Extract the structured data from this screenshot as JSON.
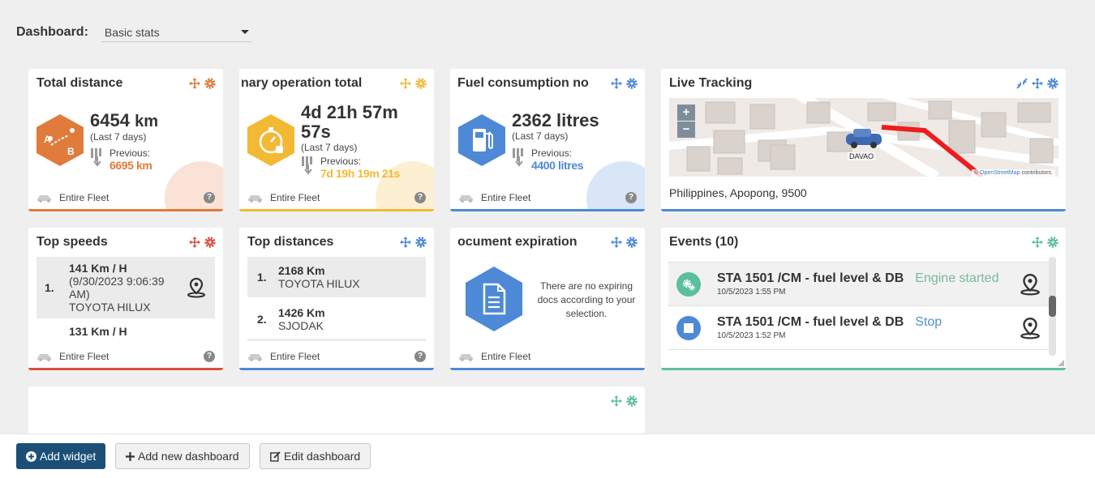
{
  "dashboard": {
    "label": "Dashboard:",
    "selected": "Basic stats"
  },
  "colors": {
    "orange": "#e07b3c",
    "yellow": "#f3b935",
    "blue": "#4d89d6",
    "red": "#d94f3f",
    "green": "#5cbf9b",
    "navy": "#1b4f78"
  },
  "widgets": {
    "total_distance": {
      "title": "Total distance",
      "value": "6454",
      "unit": "km",
      "period": "(Last 7 days)",
      "previous_label": "Previous:",
      "previous_value": "6695 km",
      "footer": "Entire Fleet",
      "help": "?"
    },
    "primary_operation": {
      "title": "nary operation total",
      "value_line1": "4d 21h 57m",
      "value_line2": "57s",
      "period": "(Last 7 days)",
      "previous_label": "Previous:",
      "previous_value": "7d 19h 19m 21s",
      "footer": "Entire Fleet",
      "help": "?"
    },
    "fuel_consumption": {
      "title": "Fuel consumption no",
      "value": "2362 litres",
      "period": "(Last 7 days)",
      "previous_label": "Previous:",
      "previous_value": "4400 litres",
      "footer": "Entire Fleet",
      "help": "?"
    },
    "live_tracking": {
      "title": "Live Tracking",
      "zoom_in": "+",
      "zoom_out": "−",
      "marker_label": "DAVAO",
      "attribution_prefix": "© ",
      "attribution_link": "OpenStreetMap",
      "attribution_suffix": " contributors.",
      "address": "Philippines, Apopong, 9500"
    },
    "top_speeds": {
      "title": "Top speeds",
      "items": [
        {
          "rank": "1.",
          "speed": "141 Km / H",
          "time": "(9/30/2023 9:06:39 AM)",
          "vehicle": "TOYOTA HILUX"
        },
        {
          "rank": "",
          "speed": "131 Km / H",
          "time": "",
          "vehicle": ""
        }
      ],
      "footer": "Entire Fleet",
      "help": "?"
    },
    "top_distances": {
      "title": "Top distances",
      "items": [
        {
          "rank": "1.",
          "distance": "2168 Km",
          "vehicle": "TOYOTA HILUX"
        },
        {
          "rank": "2.",
          "distance": "1426 Km",
          "vehicle": "SJODAK"
        }
      ],
      "footer": "Entire Fleet",
      "help": "?"
    },
    "document_expiration": {
      "title": "ocument expiration",
      "message": "There are no expiring docs according to your selection.",
      "footer": "Entire Fleet"
    },
    "events": {
      "title": "Events (10)",
      "items": [
        {
          "title": "STA 1501 /CM - fuel level & DB",
          "status": "Engine started",
          "date": "10/5/2023 1:55 PM",
          "icon": "gears-icon"
        },
        {
          "title": "STA 1501 /CM - fuel level & DB",
          "status": "Stop",
          "date": "10/5/2023 1:52 PM",
          "icon": "stop-icon"
        }
      ]
    }
  },
  "buttons": {
    "add_widget": "Add widget",
    "add_dashboard": "Add new dashboard",
    "edit_dashboard": "Edit dashboard"
  }
}
